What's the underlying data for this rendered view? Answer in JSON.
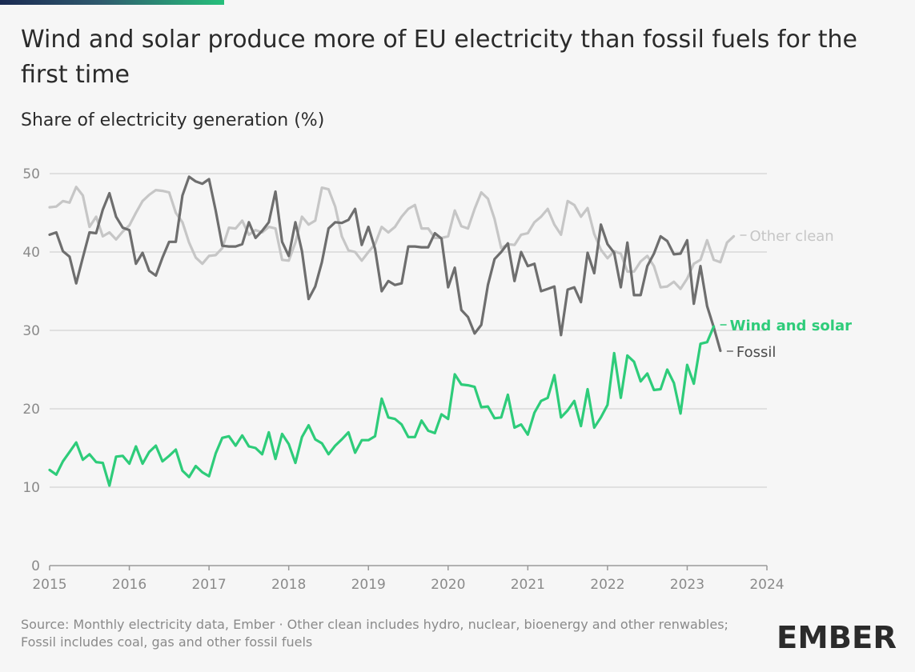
{
  "header": {
    "title": "Wind and solar produce more of EU electricity than fossil fuels for the first time",
    "subtitle": "Share of electricity generation (%)"
  },
  "footer": {
    "source": "Source: Monthly electricity data, Ember · Other clean includes hydro, nuclear, bioenergy and other renwables; Fossil includes coal, gas and other fossil fuels"
  },
  "logo": {
    "text": "EMBER"
  },
  "colors": {
    "wind_solar": "#2ecc7a",
    "fossil": "#6e6e6e",
    "other_clean": "#c6c6c6",
    "grid": "#d9d9d9",
    "brand": "#2b2b2b"
  },
  "chart_data": {
    "type": "line",
    "title": "Wind and solar produce more of EU electricity than fossil fuels for the first time",
    "ylabel": "Share of electricity generation (%)",
    "xlabel": "",
    "xlim": [
      2015,
      2024
    ],
    "ylim": [
      0,
      50
    ],
    "grid": true,
    "x_ticks": [
      "2015",
      "2016",
      "2017",
      "2018",
      "2019",
      "2020",
      "2021",
      "2022",
      "2023",
      "2024"
    ],
    "y_ticks": [
      "0",
      "10",
      "20",
      "30",
      "40",
      "50"
    ],
    "x_start": 2015.0,
    "x_step": 0.08333,
    "series": [
      {
        "name": "Other clean",
        "label": "Other clean",
        "color": "#c6c6c6",
        "values": [
          45.7,
          45.8,
          46.5,
          46.3,
          48.3,
          47.2,
          43.2,
          44.5,
          42.0,
          42.5,
          41.6,
          42.6,
          43.4,
          45.0,
          46.5,
          47.3,
          47.9,
          47.8,
          47.6,
          45.0,
          43.8,
          41.2,
          39.3,
          38.5,
          39.5,
          39.6,
          40.5,
          43.1,
          43.0,
          44.0,
          42.2,
          42.8,
          42.5,
          43.2,
          43.0,
          39.0,
          38.9,
          41.2,
          44.5,
          43.5,
          44.0,
          48.2,
          48.0,
          45.8,
          42.0,
          40.2,
          40.0,
          38.9,
          40.0,
          41.0,
          43.2,
          42.5,
          43.2,
          44.5,
          45.5,
          46.0,
          43.0,
          43.0,
          41.8,
          41.8,
          42.0,
          45.3,
          43.3,
          43.0,
          45.5,
          47.6,
          46.8,
          44.2,
          40.5,
          41.0,
          40.9,
          42.2,
          42.4,
          43.8,
          44.5,
          45.5,
          43.5,
          42.2,
          46.5,
          46.0,
          44.5,
          45.6,
          42.3,
          40.3,
          39.2,
          40.1,
          39.8,
          37.5,
          37.5,
          38.8,
          39.5,
          38.2,
          35.5,
          35.6,
          36.2,
          35.3,
          36.6,
          38.5,
          39.0,
          41.5,
          39.0,
          38.7,
          41.2,
          42.0
        ]
      },
      {
        "name": "Fossil",
        "label": "Fossil",
        "color": "#6e6e6e",
        "values": [
          42.2,
          42.5,
          40.1,
          39.4,
          36.0,
          39.3,
          42.5,
          42.4,
          45.4,
          47.5,
          44.5,
          43.1,
          42.8,
          38.5,
          39.9,
          37.6,
          37.0,
          39.3,
          41.3,
          41.3,
          47.2,
          49.6,
          49.0,
          48.7,
          49.3,
          45.3,
          40.8,
          40.7,
          40.7,
          41.0,
          43.8,
          41.8,
          42.7,
          43.8,
          47.7,
          41.3,
          39.5,
          43.8,
          40.1,
          34.0,
          35.6,
          38.7,
          43.0,
          43.8,
          43.7,
          44.1,
          45.5,
          40.9,
          43.2,
          40.4,
          35.0,
          36.3,
          35.8,
          36.0,
          40.7,
          40.7,
          40.6,
          40.6,
          42.4,
          41.7,
          35.5,
          38.0,
          32.6,
          31.7,
          29.6,
          30.7,
          35.8,
          39.1,
          40.0,
          41.1,
          36.3,
          40.0,
          38.2,
          38.5,
          35.0,
          35.3,
          35.6,
          29.4,
          35.2,
          35.5,
          33.6,
          39.9,
          37.3,
          43.5,
          41.0,
          39.9,
          35.5,
          41.2,
          34.5,
          34.5,
          38.2,
          39.8,
          42.0,
          41.4,
          39.7,
          39.8,
          41.5,
          33.4,
          38.2,
          33.1,
          30.4,
          27.4
        ]
      },
      {
        "name": "Wind and solar",
        "label": "Wind and solar",
        "color": "#2ecc7a",
        "values": [
          12.2,
          11.6,
          13.3,
          14.5,
          15.7,
          13.5,
          14.2,
          13.2,
          13.1,
          10.2,
          13.9,
          14.0,
          13.0,
          15.2,
          13.0,
          14.5,
          15.3,
          13.3,
          14.0,
          14.8,
          12.1,
          11.3,
          12.7,
          11.9,
          11.4,
          14.3,
          16.3,
          16.5,
          15.3,
          16.6,
          15.2,
          15.0,
          14.2,
          17.0,
          13.6,
          16.8,
          15.5,
          13.1,
          16.4,
          17.9,
          16.1,
          15.6,
          14.2,
          15.3,
          16.1,
          17.0,
          14.4,
          16.0,
          16.0,
          16.5,
          21.3,
          18.9,
          18.7,
          18.0,
          16.4,
          16.4,
          18.5,
          17.2,
          16.9,
          19.3,
          18.7,
          24.4,
          23.1,
          23.0,
          22.8,
          20.2,
          20.3,
          18.8,
          18.9,
          21.8,
          17.6,
          18.0,
          16.7,
          19.5,
          21.0,
          21.4,
          24.3,
          18.9,
          19.8,
          21.0,
          17.8,
          22.5,
          17.6,
          18.9,
          20.5,
          27.1,
          21.4,
          26.8,
          26.0,
          23.5,
          24.5,
          22.4,
          22.5,
          25.0,
          23.3,
          19.4,
          25.6,
          23.2,
          28.3,
          28.5,
          30.5
        ]
      }
    ]
  }
}
